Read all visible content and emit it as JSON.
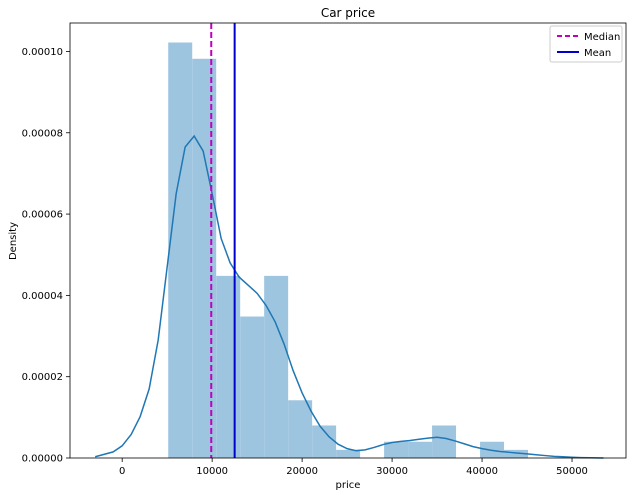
{
  "chart_data": {
    "type": "histogram",
    "title": "Car price",
    "xlabel": "price",
    "ylabel": "Density",
    "xlim": [
      -5800,
      56000
    ],
    "ylim": [
      0,
      0.000107
    ],
    "x_ticks": [
      0,
      10000,
      20000,
      30000,
      40000,
      50000
    ],
    "y_ticks": [
      0.0,
      2e-05,
      4e-05,
      6e-05,
      8e-05,
      0.0001
    ],
    "x_tick_labels": [
      "0",
      "10000",
      "20000",
      "30000",
      "40000",
      "50000"
    ],
    "y_tick_labels": [
      "0.00000",
      "0.00002",
      "0.00004",
      "0.00006",
      "0.00008",
      "0.00010"
    ],
    "histogram": {
      "color": "#9ec5e0",
      "bins": [
        {
          "x0": 5118,
          "x1": 7784,
          "density": 0.0001022
        },
        {
          "x0": 7784,
          "x1": 10450,
          "density": 9.82e-05
        },
        {
          "x0": 10450,
          "x1": 13116,
          "density": 4.48e-05
        },
        {
          "x0": 13116,
          "x1": 15782,
          "density": 3.48e-05
        },
        {
          "x0": 15782,
          "x1": 18448,
          "density": 4.48e-05
        },
        {
          "x0": 18448,
          "x1": 21114,
          "density": 1.42e-05
        },
        {
          "x0": 21114,
          "x1": 23780,
          "density": 8e-06
        },
        {
          "x0": 23780,
          "x1": 26446,
          "density": 2e-06
        },
        {
          "x0": 26446,
          "x1": 29112,
          "density": 0.0
        },
        {
          "x0": 29112,
          "x1": 31778,
          "density": 4e-06
        },
        {
          "x0": 31778,
          "x1": 34444,
          "density": 4e-06
        },
        {
          "x0": 34444,
          "x1": 37110,
          "density": 8e-06
        },
        {
          "x0": 37110,
          "x1": 39776,
          "density": 0.0
        },
        {
          "x0": 39776,
          "x1": 42442,
          "density": 4e-06
        },
        {
          "x0": 42442,
          "x1": 45108,
          "density": 2e-06
        }
      ]
    },
    "kde": {
      "color": "#1f77b4",
      "x": [
        -3000,
        -1000,
        0,
        1000,
        2000,
        3000,
        4000,
        5000,
        6000,
        7000,
        8000,
        9000,
        10000,
        11000,
        12000,
        13000,
        14000,
        15000,
        16000,
        17000,
        18000,
        19000,
        20000,
        21000,
        22000,
        23000,
        24000,
        25000,
        26000,
        27000,
        28000,
        29000,
        30000,
        31000,
        32000,
        33000,
        34000,
        35000,
        36000,
        37000,
        38000,
        39000,
        40000,
        41000,
        42000,
        43000,
        44000,
        45000,
        46000,
        47000,
        48000,
        49000,
        50000,
        51000,
        52000,
        53500
      ],
      "y": [
        3e-07,
        1.5e-06,
        3e-06,
        5.8e-06,
        1.02e-05,
        1.7e-05,
        2.9e-05,
        4.7e-05,
        6.5e-05,
        7.65e-05,
        7.92e-05,
        7.55e-05,
        6.5e-05,
        5.4e-05,
        4.8e-05,
        4.45e-05,
        4.25e-05,
        4.05e-05,
        3.75e-05,
        3.35e-05,
        2.8e-05,
        2.15e-05,
        1.6e-05,
        1.15e-05,
        7.8e-06,
        5.2e-06,
        3.4e-06,
        2.3e-06,
        1.8e-06,
        2e-06,
        2.6e-06,
        3.3e-06,
        3.8e-06,
        4.1e-06,
        4.3e-06,
        4.6e-06,
        4.9e-06,
        5.1e-06,
        4.8e-06,
        4.2e-06,
        3.5e-06,
        2.8e-06,
        2.3e-06,
        1.9e-06,
        1.6e-06,
        1.4e-06,
        1.2e-06,
        1e-06,
        8e-07,
        6e-07,
        4e-07,
        3e-07,
        2e-07,
        1e-07,
        5e-08,
        0.0
      ]
    },
    "median": {
      "value": 9900,
      "label": "Median",
      "color": "#bf00bf",
      "style": "dashed"
    },
    "mean": {
      "value": 12500,
      "label": "Mean",
      "color": "#0000cc",
      "style": "solid"
    },
    "legend": {
      "placement": "top-right",
      "entries": [
        "Median",
        "Mean"
      ]
    },
    "grid": false
  }
}
